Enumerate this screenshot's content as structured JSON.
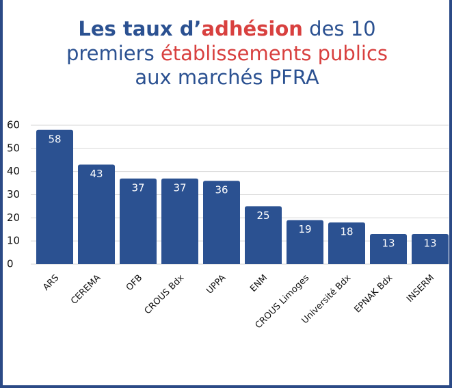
{
  "chart_data": {
    "type": "bar",
    "title": [
      [
        "Les taux d’",
        "adhésion",
        " des 10"
      ],
      [
        "premiers ",
        "établissements publics"
      ],
      [
        "aux marchés PFRA"
      ]
    ],
    "categories": [
      "ARS",
      "CEREMA",
      "OFB",
      "CROUS Bdx",
      "UPPA",
      "ENM",
      "CROUS Limoges",
      "Université Bdx",
      "EPNAK Bdx",
      "INSERM"
    ],
    "values": [
      58,
      43,
      37,
      37,
      36,
      25,
      19,
      18,
      13,
      13
    ],
    "color": "#2b5191",
    "ylim": [
      0,
      60
    ],
    "yticks": [
      0,
      10,
      20,
      30,
      40,
      50,
      60
    ],
    "grid": true
  }
}
